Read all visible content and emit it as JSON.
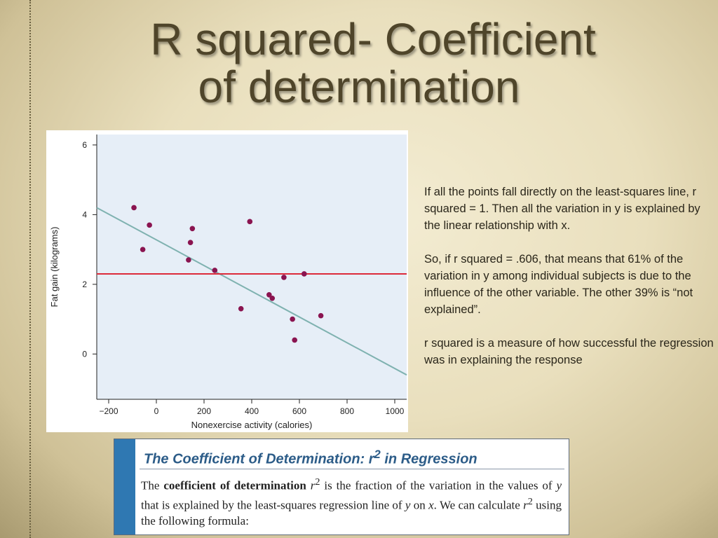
{
  "slide": {
    "title_line1": "R squared- Coefficient",
    "title_line2": "of determination"
  },
  "text_panel": {
    "p1": "If all the points fall directly on the least-squares line, r squared = 1.  Then all the variation in y is explained by the linear relationship with x.",
    "p2": "So, if r squared = .606, that means that 61% of the variation in y among individual subjects is due to the influence of the other variable.  The other 39% is “not explained”.",
    "p3": "r squared is a measure of how successful the regression was in explaining the response"
  },
  "definition_box": {
    "heading": "The Coefficient of Determination: r",
    "heading_sup": "2",
    "heading_tail": "in Regression",
    "body_t1": "The ",
    "body_bold": "coefficient of determination",
    "body_r": "r",
    "body_sup": "2",
    "body_t2": " is the fraction of the variation in the values of ",
    "body_y": "y",
    "body_t3": " that is explained by the least-squares regression line of ",
    "body_y2": "y",
    "body_t4": " on ",
    "body_x": "x",
    "body_t5": ". We can calculate ",
    "body_r2": "r",
    "body_sup2": "2",
    "body_t6": " using the following formula:"
  },
  "colors": {
    "plot_background": "#e6eef7",
    "points": "#8a1450",
    "regression_line": "#7fb2b0",
    "mean_line": "#dc2a3a",
    "definition_strip": "#2f78b2",
    "definition_heading": "#2c5c88"
  },
  "chart_data": {
    "type": "scatter",
    "xlabel": "Nonexercise activity (calories)",
    "ylabel": "Fat gain (kilograms)",
    "xlim": [
      -250,
      1050
    ],
    "ylim": [
      -1.3,
      6.3
    ],
    "xticks": [
      -200,
      0,
      200,
      400,
      600,
      800,
      1000
    ],
    "xtick_labels": [
      "−200",
      "0",
      "200",
      "400",
      "600",
      "800",
      "1000"
    ],
    "yticks": [
      0,
      2,
      4,
      6
    ],
    "ytick_labels": [
      "0",
      "2",
      "4",
      "6"
    ],
    "points": [
      {
        "x": -94,
        "y": 4.2
      },
      {
        "x": -57,
        "y": 3.0
      },
      {
        "x": -29,
        "y": 3.7
      },
      {
        "x": 135,
        "y": 2.7
      },
      {
        "x": 143,
        "y": 3.2
      },
      {
        "x": 151,
        "y": 3.6
      },
      {
        "x": 245,
        "y": 2.4
      },
      {
        "x": 355,
        "y": 1.3
      },
      {
        "x": 392,
        "y": 3.8
      },
      {
        "x": 473,
        "y": 1.7
      },
      {
        "x": 486,
        "y": 1.6
      },
      {
        "x": 535,
        "y": 2.2
      },
      {
        "x": 571,
        "y": 1.0
      },
      {
        "x": 580,
        "y": 0.4
      },
      {
        "x": 620,
        "y": 2.3
      },
      {
        "x": 690,
        "y": 1.1
      }
    ],
    "regression_line": {
      "x": [
        -250,
        1050
      ],
      "y": [
        4.2,
        -0.6
      ]
    },
    "mean_line_y": 2.3
  }
}
